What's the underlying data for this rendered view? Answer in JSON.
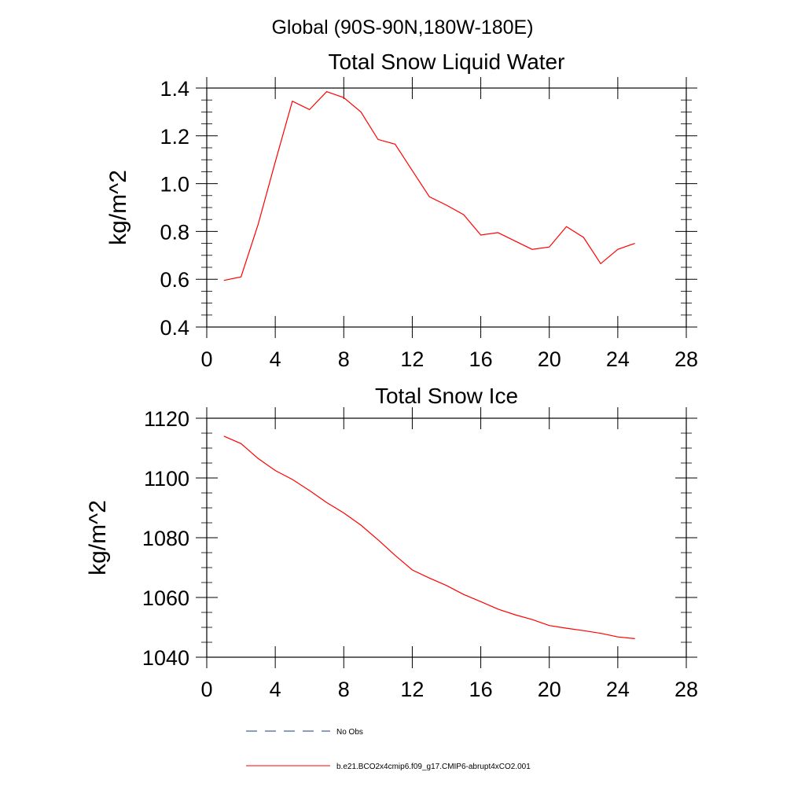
{
  "header": {
    "region_title": "Global (90S-90N,180W-180E)"
  },
  "colors": {
    "model_line": "#ff0000",
    "obs_line": "#1f3a78",
    "axis": "#000000"
  },
  "legend": {
    "obs_label": "No Obs",
    "model_label": "b.e21.BCO2x4cmip6.f09_g17.CMIP6-abrupt4xCO2.001"
  },
  "chart_data": [
    {
      "type": "line",
      "title": "Total Snow Liquid Water",
      "xlabel": "",
      "ylabel": "kg/m^2",
      "xlim": [
        0,
        28
      ],
      "ylim": [
        0.4,
        1.4
      ],
      "xticks": [
        0,
        4,
        8,
        12,
        16,
        20,
        24,
        28
      ],
      "xtick_labels": [
        "0",
        "4",
        "8",
        "12",
        "16",
        "20",
        "24",
        "28"
      ],
      "yticks": [
        0.4,
        0.6,
        0.8,
        1.0,
        1.2,
        1.4
      ],
      "ytick_labels": [
        "0.4",
        "0.6",
        "0.8",
        "1.0",
        "1.2",
        "1.4"
      ],
      "grid": false,
      "series": [
        {
          "name": "b.e21.BCO2x4cmip6.f09_g17.CMIP6-abrupt4xCO2.001",
          "x": [
            1,
            2,
            3,
            4,
            5,
            6,
            7,
            8,
            9,
            10,
            11,
            12,
            13,
            14,
            15,
            16,
            17,
            18,
            19,
            20,
            21,
            22,
            23,
            24,
            25
          ],
          "values": [
            0.595,
            0.61,
            0.83,
            1.09,
            1.345,
            1.31,
            1.385,
            1.36,
            1.3,
            1.185,
            1.165,
            1.055,
            0.945,
            0.91,
            0.87,
            0.785,
            0.795,
            0.76,
            0.725,
            0.735,
            0.82,
            0.775,
            0.665,
            0.725,
            0.75
          ]
        }
      ]
    },
    {
      "type": "line",
      "title": "Total Snow Ice",
      "xlabel": "",
      "ylabel": "kg/m^2",
      "xlim": [
        0,
        28
      ],
      "ylim": [
        1040,
        1120
      ],
      "xticks": [
        0,
        4,
        8,
        12,
        16,
        20,
        24,
        28
      ],
      "xtick_labels": [
        "0",
        "4",
        "8",
        "12",
        "16",
        "20",
        "24",
        "28"
      ],
      "yticks": [
        1040,
        1060,
        1080,
        1100,
        1120
      ],
      "ytick_labels": [
        "1040",
        "1060",
        "1080",
        "1100",
        "1120"
      ],
      "grid": false,
      "series": [
        {
          "name": "b.e21.BCO2x4cmip6.f09_g17.CMIP6-abrupt4xCO2.001",
          "x": [
            1,
            2,
            3,
            4,
            5,
            6,
            7,
            8,
            9,
            10,
            11,
            12,
            13,
            14,
            15,
            16,
            17,
            18,
            19,
            20,
            21,
            22,
            23,
            24,
            25
          ],
          "values": [
            1114,
            1111.5,
            1106.5,
            1102.5,
            1099.5,
            1095.8,
            1091.8,
            1088.3,
            1084.2,
            1079.3,
            1074.1,
            1069.2,
            1066.5,
            1064.0,
            1061.0,
            1058.6,
            1056.1,
            1054.2,
            1052.6,
            1050.6,
            1049.7,
            1048.9,
            1048.0,
            1046.8,
            1046.2
          ]
        }
      ]
    }
  ]
}
